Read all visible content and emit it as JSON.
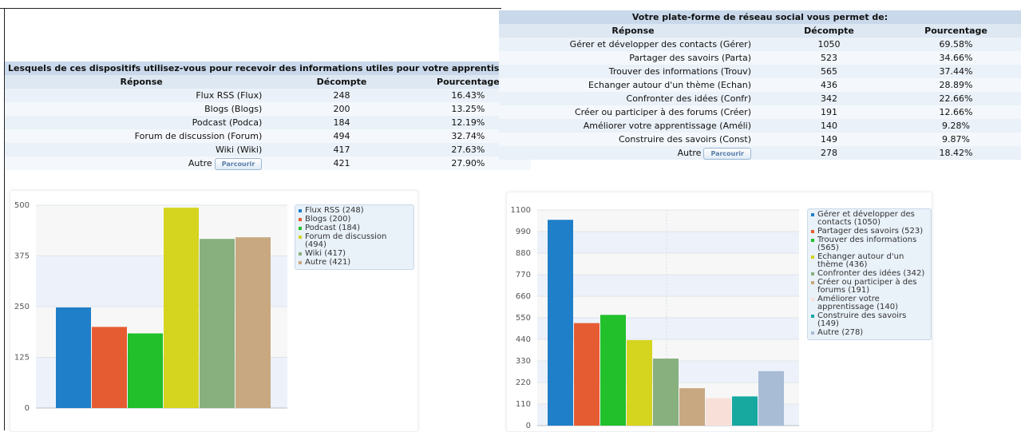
{
  "left": {
    "question": "Lesquels de ces dispositifs utilisez-vous pour recevoir des informations utiles pour votre apprentissage?",
    "headers": {
      "response": "Réponse",
      "count": "Décompte",
      "percent": "Pourcentage"
    },
    "rows": [
      {
        "label": "Flux RSS (Flux)",
        "count": "248",
        "percent": "16.43%"
      },
      {
        "label": "Blogs (Blogs)",
        "count": "200",
        "percent": "13.25%"
      },
      {
        "label": "Podcast (Podca)",
        "count": "184",
        "percent": "12.19%"
      },
      {
        "label": "Forum de discussion (Forum)",
        "count": "494",
        "percent": "32.74%"
      },
      {
        "label": "Wiki (Wiki)",
        "count": "417",
        "percent": "27.63%"
      },
      {
        "label": "Autre",
        "count": "421",
        "percent": "27.90%",
        "button": "Parcourir"
      }
    ],
    "legend": [
      "Flux RSS (248)",
      "Blogs (200)",
      "Podcast (184)",
      "Forum de discussion (494)",
      "Wiki (417)",
      "Autre (421)"
    ]
  },
  "right": {
    "question": "Votre plate-forme de réseau social vous permet de:",
    "headers": {
      "response": "Réponse",
      "count": "Décompte",
      "percent": "Pourcentage"
    },
    "rows": [
      {
        "label": "Gérer et développer des contacts (Gérer)",
        "count": "1050",
        "percent": "69.58%"
      },
      {
        "label": "Partager des savoirs (Parta)",
        "count": "523",
        "percent": "34.66%"
      },
      {
        "label": "Trouver des informations (Trouv)",
        "count": "565",
        "percent": "37.44%"
      },
      {
        "label": "Echanger autour d'un thème (Echan)",
        "count": "436",
        "percent": "28.89%"
      },
      {
        "label": "Confronter des idées (Confr)",
        "count": "342",
        "percent": "22.66%"
      },
      {
        "label": "Créer ou participer à des forums (Créer)",
        "count": "191",
        "percent": "12.66%"
      },
      {
        "label": "Améliorer votre apprentissage (Améli)",
        "count": "140",
        "percent": "9.28%"
      },
      {
        "label": "Construire des savoirs (Const)",
        "count": "149",
        "percent": "9.87%"
      },
      {
        "label": "Autre",
        "count": "278",
        "percent": "18.42%",
        "button": "Parcourir"
      }
    ],
    "legend": [
      "Gérer et développer des contacts (1050)",
      "Partager des savoirs (523)",
      "Trouver des informations (565)",
      "Echanger autour d'un thème (436)",
      "Confronter des idées (342)",
      "Créer ou participer à des forums (191)",
      "Améliorer votre apprentissage (140)",
      "Construire des savoirs (149)",
      "Autre (278)"
    ]
  },
  "chart_data": [
    {
      "type": "bar",
      "categories": [
        "Flux RSS",
        "Blogs",
        "Podcast",
        "Forum de discussion",
        "Wiki",
        "Autre"
      ],
      "values": [
        248,
        200,
        184,
        494,
        417,
        421
      ],
      "colors": [
        "#1f7fc8",
        "#e65c32",
        "#22c02a",
        "#d5d41f",
        "#88b07e",
        "#c8a880"
      ],
      "ylim": [
        0,
        500
      ],
      "yticks": [
        0,
        125,
        250,
        375,
        500
      ],
      "grid": "alternating horizontal bands",
      "legend_position": "right"
    },
    {
      "type": "bar",
      "categories": [
        "Gérer et développer des contacts",
        "Partager des savoirs",
        "Trouver des informations",
        "Echanger autour d'un thème",
        "Confronter des idées",
        "Créer ou participer à des forums",
        "Améliorer votre apprentissage",
        "Construire des savoirs",
        "Autre"
      ],
      "values": [
        1050,
        523,
        565,
        436,
        342,
        191,
        140,
        149,
        278
      ],
      "colors": [
        "#1f7fc8",
        "#e65c32",
        "#22c02a",
        "#d5d41f",
        "#88b07e",
        "#c8a880",
        "#f8e0d8",
        "#17a8a0",
        "#a8bcd6"
      ],
      "ylim": [
        0,
        1100
      ],
      "yticks": [
        0,
        110,
        220,
        330,
        440,
        550,
        660,
        770,
        880,
        990,
        1100
      ],
      "grid": "alternating horizontal bands",
      "legend_position": "right"
    }
  ]
}
